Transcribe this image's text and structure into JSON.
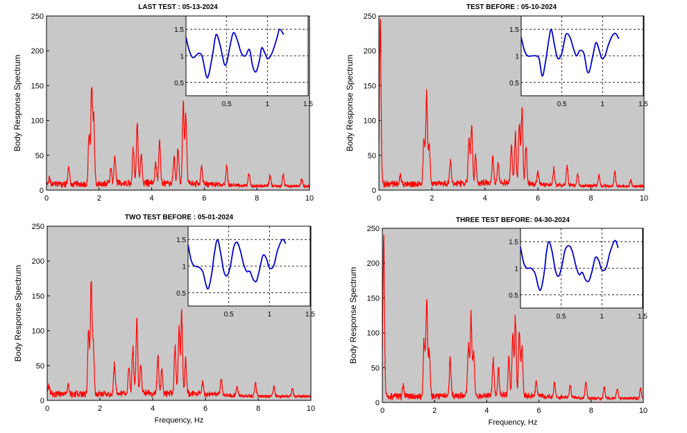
{
  "chart_data": [
    {
      "type": "line",
      "title": "LAST TEST : 05-13-2024",
      "xlabel": "",
      "ylabel": "Body Response Spectrum",
      "xlim": [
        0,
        10
      ],
      "ylim": [
        0,
        250
      ],
      "xticks": [
        "0",
        "2",
        "4",
        "6",
        "8",
        "10"
      ],
      "yticks": [
        "0",
        "50",
        "100",
        "150",
        "200",
        "250"
      ],
      "background": "#c8c8c8",
      "line_color": "#ff0000",
      "peaks": [
        [
          0.1,
          8
        ],
        [
          0.85,
          25
        ],
        [
          1.72,
          150
        ],
        [
          1.62,
          80
        ],
        [
          1.8,
          95
        ],
        [
          2.6,
          45
        ],
        [
          2.45,
          25
        ],
        [
          3.45,
          92
        ],
        [
          3.3,
          55
        ],
        [
          3.6,
          40
        ],
        [
          4.3,
          65
        ],
        [
          4.15,
          30
        ],
        [
          5.2,
          127
        ],
        [
          5.3,
          110
        ],
        [
          5.0,
          55
        ],
        [
          4.85,
          40
        ],
        [
          5.9,
          25
        ],
        [
          6.85,
          30
        ],
        [
          7.7,
          20
        ],
        [
          8.5,
          15
        ],
        [
          9.0,
          18
        ],
        [
          9.7,
          10
        ]
      ],
      "inset": {
        "xlim": [
          0,
          1.5
        ],
        "ylim": [
          0.25,
          1.75
        ],
        "xticks": [
          "0.5",
          "1",
          "1.5"
        ],
        "yticks": [
          "0.5",
          "1",
          "1.5"
        ],
        "line_color": "#0000cc",
        "points": [
          [
            0.0,
            1.35
          ],
          [
            0.04,
            1.1
          ],
          [
            0.08,
            0.97
          ],
          [
            0.12,
            1.0
          ],
          [
            0.16,
            1.05
          ],
          [
            0.2,
            0.98
          ],
          [
            0.25,
            0.62
          ],
          [
            0.28,
            0.65
          ],
          [
            0.33,
            1.05
          ],
          [
            0.37,
            1.4
          ],
          [
            0.42,
            1.2
          ],
          [
            0.47,
            0.85
          ],
          [
            0.5,
            0.87
          ],
          [
            0.53,
            1.1
          ],
          [
            0.58,
            1.43
          ],
          [
            0.63,
            1.3
          ],
          [
            0.68,
            1.05
          ],
          [
            0.73,
            1.0
          ],
          [
            0.78,
            1.12
          ],
          [
            0.82,
            0.8
          ],
          [
            0.86,
            0.7
          ],
          [
            0.9,
            0.9
          ],
          [
            0.93,
            1.15
          ],
          [
            0.97,
            1.05
          ],
          [
            1.0,
            0.95
          ],
          [
            1.04,
            1.0
          ],
          [
            1.08,
            1.15
          ],
          [
            1.12,
            1.35
          ],
          [
            1.15,
            1.5
          ],
          [
            1.2,
            1.4
          ]
        ]
      }
    },
    {
      "type": "line",
      "title": "TEST BEFORE : 05-10-2024",
      "xlabel": "",
      "ylabel": "Body Response Spectrum",
      "xlim": [
        0,
        10
      ],
      "ylim": [
        0,
        250
      ],
      "xticks": [
        "0",
        "2",
        "4",
        "6",
        "8",
        "10"
      ],
      "yticks": [
        "0",
        "50",
        "100",
        "150",
        "200",
        "250"
      ],
      "background": "#c8c8c8",
      "line_color": "#ff0000",
      "peaks": [
        [
          0.05,
          250
        ],
        [
          0.8,
          15
        ],
        [
          1.8,
          137
        ],
        [
          1.7,
          70
        ],
        [
          1.9,
          60
        ],
        [
          2.7,
          35
        ],
        [
          3.5,
          88
        ],
        [
          3.4,
          70
        ],
        [
          3.65,
          45
        ],
        [
          4.3,
          40
        ],
        [
          4.5,
          30
        ],
        [
          5.4,
          117
        ],
        [
          5.3,
          95
        ],
        [
          5.15,
          75
        ],
        [
          5.0,
          60
        ],
        [
          5.55,
          55
        ],
        [
          6.0,
          20
        ],
        [
          6.6,
          25
        ],
        [
          7.1,
          30
        ],
        [
          7.5,
          20
        ],
        [
          8.3,
          18
        ],
        [
          8.9,
          22
        ],
        [
          9.5,
          10
        ]
      ],
      "inset": {
        "xlim": [
          0,
          1.5
        ],
        "ylim": [
          0.25,
          1.75
        ],
        "xticks": [
          "0.5",
          "1",
          "1.5"
        ],
        "yticks": [
          "0.5",
          "1",
          "1.5"
        ],
        "line_color": "#0000cc",
        "points": [
          [
            0.0,
            1.35
          ],
          [
            0.04,
            1.1
          ],
          [
            0.08,
            1.0
          ],
          [
            0.13,
            1.0
          ],
          [
            0.18,
            1.0
          ],
          [
            0.22,
            0.95
          ],
          [
            0.26,
            0.62
          ],
          [
            0.3,
            0.9
          ],
          [
            0.34,
            1.3
          ],
          [
            0.37,
            1.5
          ],
          [
            0.41,
            1.2
          ],
          [
            0.45,
            0.95
          ],
          [
            0.5,
            1.05
          ],
          [
            0.55,
            1.4
          ],
          [
            0.6,
            1.35
          ],
          [
            0.64,
            1.15
          ],
          [
            0.68,
            1.0
          ],
          [
            0.72,
            1.1
          ],
          [
            0.77,
            1.05
          ],
          [
            0.81,
            0.72
          ],
          [
            0.84,
            0.72
          ],
          [
            0.88,
            1.0
          ],
          [
            0.92,
            1.25
          ],
          [
            0.96,
            1.1
          ],
          [
            0.99,
            0.95
          ],
          [
            1.03,
            1.0
          ],
          [
            1.07,
            1.2
          ],
          [
            1.12,
            1.38
          ],
          [
            1.16,
            1.42
          ],
          [
            1.2,
            1.32
          ]
        ]
      }
    },
    {
      "type": "line",
      "title": "TWO TEST BEFORE : 05-01-2024",
      "xlabel": "Frequency, Hz",
      "ylabel": "Body Response Spectrum",
      "xlim": [
        0,
        10
      ],
      "ylim": [
        0,
        250
      ],
      "xticks": [
        "0",
        "2",
        "4",
        "6",
        "8",
        "10"
      ],
      "yticks": [
        "0",
        "50",
        "100",
        "150",
        "200",
        "250"
      ],
      "background": "#c8c8c8",
      "line_color": "#ff0000",
      "peaks": [
        [
          0.05,
          15
        ],
        [
          0.8,
          15
        ],
        [
          1.67,
          168
        ],
        [
          1.57,
          100
        ],
        [
          1.75,
          80
        ],
        [
          2.55,
          45
        ],
        [
          3.4,
          110
        ],
        [
          3.25,
          70
        ],
        [
          3.55,
          45
        ],
        [
          3.1,
          40
        ],
        [
          4.2,
          55
        ],
        [
          4.35,
          35
        ],
        [
          5.1,
          122
        ],
        [
          5.0,
          100
        ],
        [
          4.85,
          70
        ],
        [
          5.25,
          55
        ],
        [
          5.9,
          20
        ],
        [
          6.6,
          25
        ],
        [
          7.2,
          15
        ],
        [
          7.9,
          20
        ],
        [
          8.6,
          15
        ],
        [
          9.3,
          12
        ]
      ],
      "inset": {
        "xlim": [
          0,
          1.5
        ],
        "ylim": [
          0.25,
          1.75
        ],
        "xticks": [
          "0.5",
          "1",
          "1.5"
        ],
        "yticks": [
          "0.5",
          "1",
          "1.5"
        ],
        "line_color": "#0000cc",
        "points": [
          [
            0.0,
            1.4
          ],
          [
            0.04,
            1.1
          ],
          [
            0.08,
            1.0
          ],
          [
            0.13,
            0.98
          ],
          [
            0.18,
            0.9
          ],
          [
            0.22,
            0.65
          ],
          [
            0.25,
            0.58
          ],
          [
            0.29,
            0.85
          ],
          [
            0.32,
            1.2
          ],
          [
            0.36,
            1.5
          ],
          [
            0.4,
            1.25
          ],
          [
            0.44,
            0.9
          ],
          [
            0.48,
            0.82
          ],
          [
            0.52,
            1.0
          ],
          [
            0.56,
            1.35
          ],
          [
            0.6,
            1.45
          ],
          [
            0.64,
            1.3
          ],
          [
            0.68,
            1.05
          ],
          [
            0.72,
            0.9
          ],
          [
            0.76,
            0.9
          ],
          [
            0.8,
            0.75
          ],
          [
            0.84,
            0.72
          ],
          [
            0.88,
            0.95
          ],
          [
            0.92,
            1.2
          ],
          [
            0.96,
            1.15
          ],
          [
            1.0,
            0.97
          ],
          [
            1.05,
            1.0
          ],
          [
            1.1,
            1.3
          ],
          [
            1.16,
            1.5
          ],
          [
            1.2,
            1.42
          ]
        ]
      }
    },
    {
      "type": "line",
      "title": "THREE TEST BEFORE:   04-30-2024",
      "xlabel": "Frequency, Hz",
      "ylabel": "Body Response Spectrum",
      "xlim": [
        0,
        10
      ],
      "ylim": [
        0,
        250
      ],
      "xticks": [
        "0",
        "2",
        "4",
        "6",
        "8",
        "10"
      ],
      "yticks": [
        "0",
        "50",
        "100",
        "150",
        "200",
        "250"
      ],
      "background": "#c8c8c8",
      "line_color": "#ff0000",
      "peaks": [
        [
          0.05,
          250
        ],
        [
          0.8,
          15
        ],
        [
          1.7,
          158
        ],
        [
          1.6,
          90
        ],
        [
          1.8,
          70
        ],
        [
          2.6,
          55
        ],
        [
          3.4,
          117
        ],
        [
          3.3,
          80
        ],
        [
          3.5,
          65
        ],
        [
          4.25,
          55
        ],
        [
          4.45,
          40
        ],
        [
          5.1,
          122
        ],
        [
          5.0,
          95
        ],
        [
          5.25,
          100
        ],
        [
          5.35,
          75
        ],
        [
          4.85,
          60
        ],
        [
          5.9,
          25
        ],
        [
          6.6,
          22
        ],
        [
          7.2,
          20
        ],
        [
          7.8,
          25
        ],
        [
          8.5,
          18
        ],
        [
          9.0,
          15
        ],
        [
          9.9,
          15
        ]
      ],
      "inset": {
        "xlim": [
          0,
          1.5
        ],
        "ylim": [
          0.25,
          1.75
        ],
        "xticks": [
          "0.5",
          "1",
          "1.5"
        ],
        "yticks": [
          "0.5",
          "1",
          "1.5"
        ],
        "line_color": "#0000cc",
        "points": [
          [
            0.0,
            1.4
          ],
          [
            0.04,
            1.1
          ],
          [
            0.08,
            1.0
          ],
          [
            0.13,
            1.0
          ],
          [
            0.18,
            0.9
          ],
          [
            0.22,
            0.65
          ],
          [
            0.25,
            0.6
          ],
          [
            0.29,
            0.9
          ],
          [
            0.32,
            1.3
          ],
          [
            0.35,
            1.5
          ],
          [
            0.39,
            1.3
          ],
          [
            0.43,
            0.95
          ],
          [
            0.47,
            0.85
          ],
          [
            0.51,
            1.05
          ],
          [
            0.55,
            1.35
          ],
          [
            0.6,
            1.42
          ],
          [
            0.64,
            1.3
          ],
          [
            0.68,
            1.05
          ],
          [
            0.72,
            0.88
          ],
          [
            0.76,
            0.92
          ],
          [
            0.8,
            0.78
          ],
          [
            0.84,
            0.76
          ],
          [
            0.88,
            0.95
          ],
          [
            0.92,
            1.2
          ],
          [
            0.96,
            1.15
          ],
          [
            1.0,
            0.97
          ],
          [
            1.05,
            1.0
          ],
          [
            1.1,
            1.3
          ],
          [
            1.16,
            1.52
          ],
          [
            1.2,
            1.38
          ]
        ]
      }
    }
  ]
}
